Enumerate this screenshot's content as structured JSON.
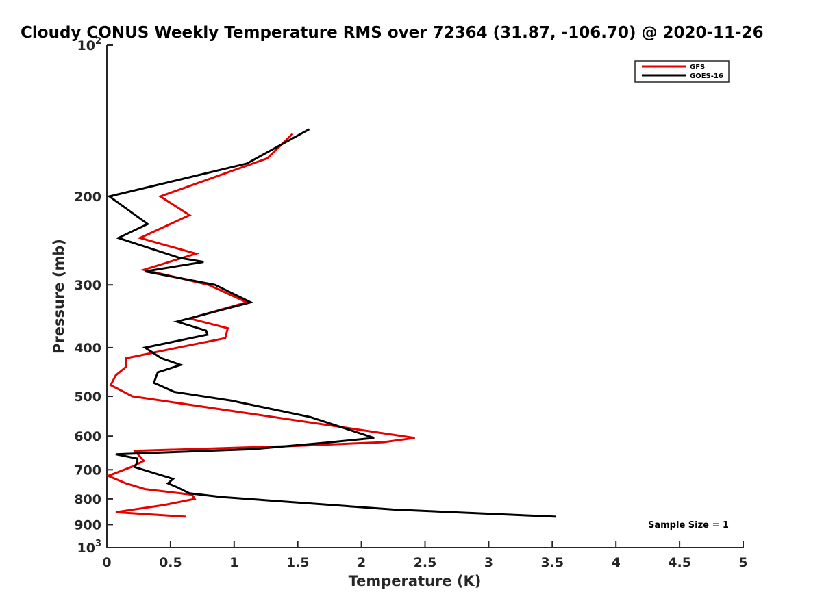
{
  "chart_data": {
    "type": "line",
    "title": "Cloudy CONUS Weekly Temperature RMS over 72364 (31.87, -106.70) @ 2020-11-26",
    "xlabel": "Temperature (K)",
    "ylabel": "Pressure (mb)",
    "xlim": [
      0,
      5
    ],
    "ylim": [
      100,
      1000
    ],
    "y_scale": "log",
    "y_reversed": true,
    "grid": false,
    "legend_position": "top-right",
    "x_ticks": [
      "0",
      "0.5",
      "1",
      "1.5",
      "2",
      "2.5",
      "3",
      "3.5",
      "4",
      "4.5",
      "5"
    ],
    "y_ticks": [
      {
        "value": 100,
        "base": "10",
        "exp": "2"
      },
      {
        "value": 200,
        "label": "200"
      },
      {
        "value": 300,
        "label": "300"
      },
      {
        "value": 400,
        "label": "400"
      },
      {
        "value": 500,
        "label": "500"
      },
      {
        "value": 600,
        "label": "600"
      },
      {
        "value": 700,
        "label": "700"
      },
      {
        "value": 800,
        "label": "800"
      },
      {
        "value": 900,
        "label": "900"
      },
      {
        "value": 1000,
        "base": "10",
        "exp": "3"
      }
    ],
    "annotation": "Sample Size = 1",
    "series": [
      {
        "name": "GFS",
        "color": "#e60000",
        "points": [
          [
            1.46,
            150
          ],
          [
            1.26,
            168
          ],
          [
            0.42,
            200
          ],
          [
            0.65,
            218
          ],
          [
            0.26,
            242
          ],
          [
            0.7,
            260
          ],
          [
            0.29,
            280
          ],
          [
            0.8,
            300
          ],
          [
            1.1,
            325
          ],
          [
            0.65,
            350
          ],
          [
            0.95,
            366
          ],
          [
            0.93,
            383
          ],
          [
            0.6,
            398
          ],
          [
            0.15,
            420
          ],
          [
            0.15,
            437
          ],
          [
            0.07,
            454
          ],
          [
            0.03,
            475
          ],
          [
            0.2,
            500
          ],
          [
            1.1,
            540
          ],
          [
            2.42,
            605
          ],
          [
            2.17,
            617
          ],
          [
            1.45,
            628
          ],
          [
            0.22,
            642
          ],
          [
            0.29,
            672
          ],
          [
            0.2,
            690
          ],
          [
            0.01,
            720
          ],
          [
            0.15,
            745
          ],
          [
            0.3,
            765
          ],
          [
            0.67,
            785
          ],
          [
            0.69,
            800
          ],
          [
            0.45,
            823
          ],
          [
            0.07,
            850
          ],
          [
            0.62,
            868
          ]
        ]
      },
      {
        "name": "GOES-16",
        "color": "#000000",
        "points": [
          [
            1.59,
            147
          ],
          [
            1.1,
            172
          ],
          [
            0.02,
            200
          ],
          [
            0.32,
            227
          ],
          [
            0.09,
            242
          ],
          [
            0.57,
            265
          ],
          [
            0.76,
            270
          ],
          [
            0.3,
            282
          ],
          [
            0.85,
            300
          ],
          [
            1.13,
            325
          ],
          [
            0.55,
            355
          ],
          [
            0.78,
            370
          ],
          [
            0.79,
            377
          ],
          [
            0.3,
            400
          ],
          [
            0.43,
            420
          ],
          [
            0.58,
            433
          ],
          [
            0.4,
            448
          ],
          [
            0.37,
            470
          ],
          [
            0.53,
            490
          ],
          [
            0.98,
            510
          ],
          [
            1.6,
            550
          ],
          [
            2.1,
            605
          ],
          [
            1.73,
            618
          ],
          [
            1.15,
            637
          ],
          [
            0.07,
            652
          ],
          [
            0.24,
            665
          ],
          [
            0.24,
            675
          ],
          [
            0.22,
            692
          ],
          [
            0.52,
            730
          ],
          [
            0.48,
            745
          ],
          [
            0.55,
            758
          ],
          [
            0.65,
            780
          ],
          [
            0.9,
            793
          ],
          [
            2.25,
            840
          ],
          [
            3.53,
            868
          ]
        ]
      }
    ]
  }
}
